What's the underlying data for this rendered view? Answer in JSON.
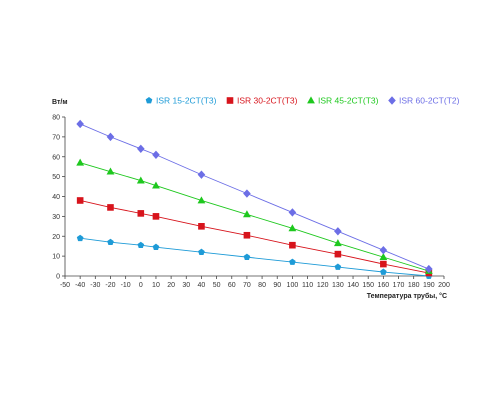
{
  "chart_data": {
    "type": "line",
    "title": "",
    "xlabel": "Температура трубы, °С",
    "ylabel": "Вт/м",
    "xlim": [
      -50,
      200
    ],
    "ylim": [
      0,
      80
    ],
    "x_ticks": [
      -50,
      -40,
      -30,
      -20,
      -10,
      0,
      10,
      20,
      30,
      40,
      50,
      60,
      70,
      80,
      90,
      100,
      110,
      120,
      130,
      140,
      150,
      160,
      170,
      180,
      190,
      200
    ],
    "y_ticks": [
      0,
      10,
      20,
      30,
      40,
      50,
      60,
      70,
      80
    ],
    "grid": false,
    "legend_position": "top",
    "series": [
      {
        "name": "ISR 15-2CT(T3)",
        "color": "#1e9bd7",
        "marker": "pentagon",
        "x": [
          -40,
          -20,
          0,
          10,
          40,
          70,
          100,
          130,
          160,
          190
        ],
        "y": [
          19,
          17,
          15.5,
          14.5,
          12,
          9.5,
          7,
          4.5,
          2,
          0
        ]
      },
      {
        "name": "ISR 30-2CT(T3)",
        "color": "#d7141c",
        "marker": "square",
        "x": [
          -40,
          -20,
          0,
          10,
          40,
          70,
          100,
          130,
          160,
          190
        ],
        "y": [
          38,
          34.5,
          31.5,
          30,
          25,
          20.5,
          15.5,
          11,
          6,
          1.5
        ]
      },
      {
        "name": "ISR 45-2CT(T3)",
        "color": "#1ec81e",
        "marker": "triangle",
        "x": [
          -40,
          -20,
          0,
          10,
          40,
          70,
          100,
          130,
          160,
          190
        ],
        "y": [
          57,
          52.5,
          48,
          45.5,
          38,
          31,
          24,
          16.5,
          9.5,
          2.5
        ]
      },
      {
        "name": "ISR 60-2CT(T2)",
        "color": "#6c6ee6",
        "marker": "diamond",
        "x": [
          -40,
          -20,
          0,
          10,
          40,
          70,
          100,
          130,
          160,
          190
        ],
        "y": [
          76.5,
          70,
          64,
          61,
          51,
          41.5,
          32,
          22.5,
          13,
          3.5
        ]
      }
    ]
  }
}
